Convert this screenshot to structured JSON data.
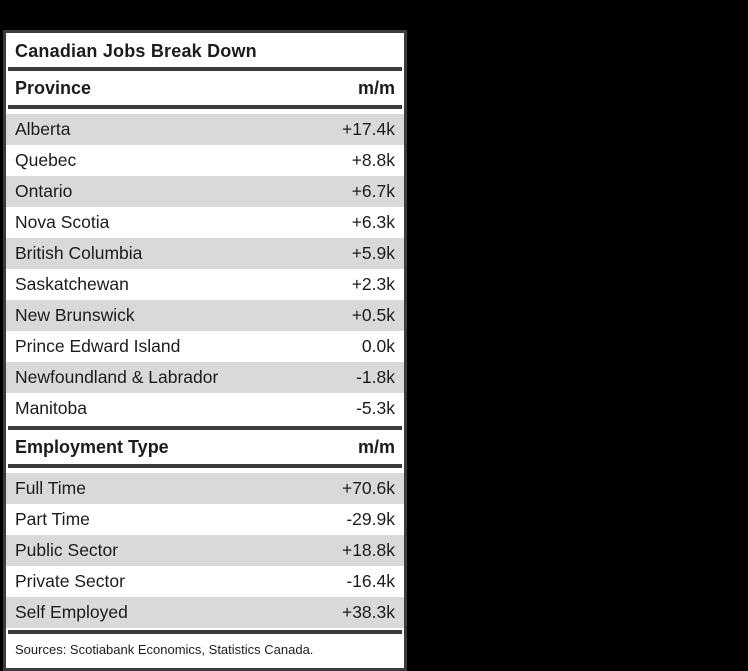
{
  "table": {
    "title": "Canadian Jobs Break Down",
    "sections": [
      {
        "header": {
          "label": "Province",
          "value_label": "m/m"
        },
        "rows": [
          {
            "label": "Alberta",
            "value": "+17.4k"
          },
          {
            "label": "Quebec",
            "value": "+8.8k"
          },
          {
            "label": "Ontario",
            "value": "+6.7k"
          },
          {
            "label": "Nova Scotia",
            "value": "+6.3k"
          },
          {
            "label": "British Columbia",
            "value": "+5.9k"
          },
          {
            "label": "Saskatchewan",
            "value": "+2.3k"
          },
          {
            "label": "New Brunswick",
            "value": "+0.5k"
          },
          {
            "label": "Prince Edward Island",
            "value": "0.0k"
          },
          {
            "label": "Newfoundland & Labrador",
            "value": "-1.8k"
          },
          {
            "label": "Manitoba",
            "value": "-5.3k"
          }
        ]
      },
      {
        "header": {
          "label": "Employment Type",
          "value_label": "m/m"
        },
        "rows": [
          {
            "label": "Full Time",
            "value": "+70.6k"
          },
          {
            "label": "Part Time",
            "value": "-29.9k"
          },
          {
            "label": "Public Sector",
            "value": "+18.8k"
          },
          {
            "label": "Private Sector",
            "value": "-16.4k"
          },
          {
            "label": "Self Employed",
            "value": "+38.3k"
          }
        ]
      }
    ],
    "source_note": "Sources: Scotiabank Economics, Statistics Canada."
  },
  "colors": {
    "canvas_background": "#000000",
    "panel_background": "#ffffff",
    "panel_border": "#3b3b3b",
    "rule": "#3b3b3b",
    "row_stripe": "#d9d9d9",
    "text": "#1c1c1c"
  },
  "chart_data": [
    {
      "type": "table",
      "title": "Canadian Jobs Break Down",
      "columns": [
        "Province",
        "m/m"
      ],
      "rows": [
        [
          "Alberta",
          "+17.4k"
        ],
        [
          "Quebec",
          "+8.8k"
        ],
        [
          "Ontario",
          "+6.7k"
        ],
        [
          "Nova Scotia",
          "+6.3k"
        ],
        [
          "British Columbia",
          "+5.9k"
        ],
        [
          "Saskatchewan",
          "+2.3k"
        ],
        [
          "New Brunswick",
          "+0.5k"
        ],
        [
          "Prince Edward Island",
          "0.0k"
        ],
        [
          "Newfoundland & Labrador",
          "-1.8k"
        ],
        [
          "Manitoba",
          "-5.3k"
        ]
      ],
      "values_thousands": [
        17.4,
        8.8,
        6.7,
        6.3,
        5.9,
        2.3,
        0.5,
        0.0,
        -1.8,
        -5.3
      ]
    },
    {
      "type": "table",
      "title": "Canadian Jobs Break Down",
      "columns": [
        "Employment Type",
        "m/m"
      ],
      "rows": [
        [
          "Full Time",
          "+70.6k"
        ],
        [
          "Part Time",
          "-29.9k"
        ],
        [
          "Public Sector",
          "+18.8k"
        ],
        [
          "Private Sector",
          "-16.4k"
        ],
        [
          "Self Employed",
          "+38.3k"
        ]
      ],
      "values_thousands": [
        70.6,
        -29.9,
        18.8,
        -16.4,
        38.3
      ]
    }
  ]
}
